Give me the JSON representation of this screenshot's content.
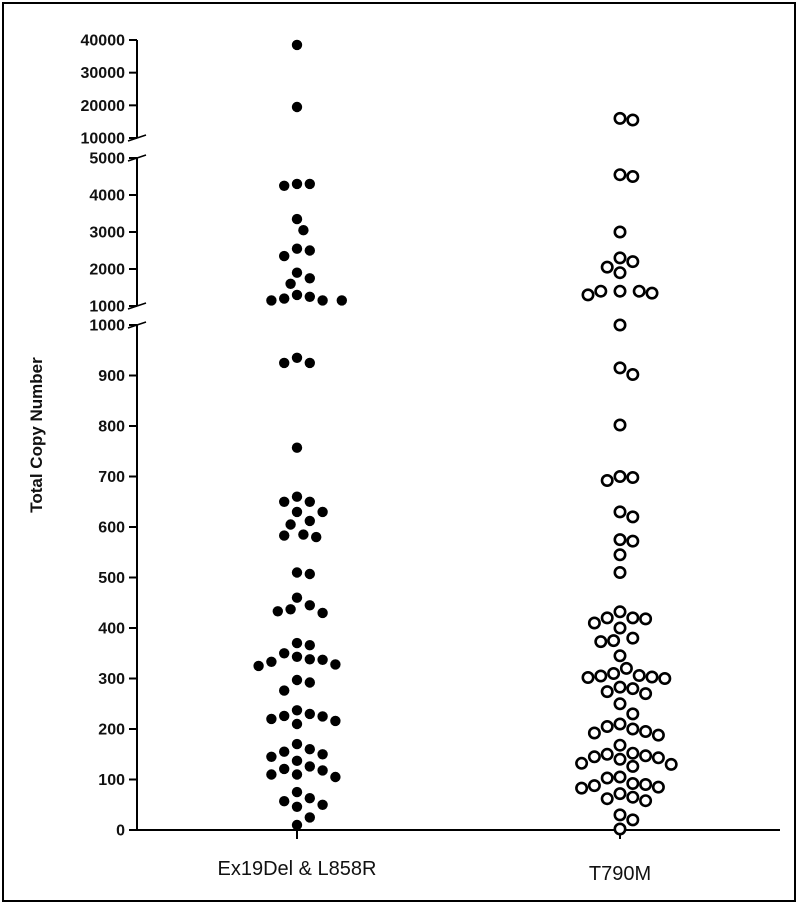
{
  "chart_data": {
    "type": "scatter",
    "title": "",
    "xlabel": "",
    "ylabel": "Total Copy Number",
    "categories": [
      "Ex19Del & L858R",
      "T790M"
    ],
    "axis_segments": [
      {
        "range": [
          0,
          1000
        ],
        "ticks": [
          0,
          100,
          200,
          300,
          400,
          500,
          600,
          700,
          800,
          900,
          1000
        ],
        "tick_labels": [
          "0",
          "100",
          "200",
          "300",
          "400",
          "500",
          "600",
          "700",
          "800",
          "900",
          "1000"
        ]
      },
      {
        "range": [
          1000,
          5000
        ],
        "ticks": [
          1000,
          2000,
          3000,
          4000,
          5000
        ],
        "tick_labels": [
          "1000",
          "2000",
          "3000",
          "4000",
          "5000"
        ]
      },
      {
        "range": [
          10000,
          40000
        ],
        "ticks": [
          10000,
          20000,
          30000,
          40000
        ],
        "tick_labels": [
          "10000",
          "20000",
          "30000",
          "40000"
        ]
      }
    ],
    "series": [
      {
        "name": "Ex19Del & L858R",
        "marker": "filled-circle",
        "values": [
          38500,
          19500,
          4300,
          4250,
          4300,
          3350,
          3050,
          2550,
          2500,
          2350,
          1900,
          1750,
          1600,
          1300,
          1250,
          1200,
          1150,
          1150,
          1150,
          935,
          925,
          925,
          757,
          660,
          650,
          650,
          630,
          630,
          612,
          605,
          583,
          585,
          580,
          510,
          507,
          460,
          445,
          437,
          433,
          430,
          370,
          366,
          350,
          343,
          338,
          337,
          333,
          328,
          325,
          297,
          292,
          276,
          237,
          230,
          226,
          225,
          220,
          216,
          210,
          170,
          160,
          155,
          150,
          145,
          137,
          126,
          121,
          118,
          110,
          110,
          105,
          75,
          63,
          57,
          50,
          46,
          25,
          10
        ]
      },
      {
        "name": "T790M",
        "marker": "open-circle",
        "values": [
          16000,
          15500,
          4550,
          4500,
          3000,
          2300,
          2200,
          2050,
          1900,
          1400,
          1400,
          1400,
          1350,
          1300,
          1000,
          915,
          902,
          802,
          700,
          698,
          692,
          630,
          620,
          575,
          572,
          545,
          510,
          432,
          420,
          420,
          418,
          410,
          400,
          380,
          375,
          373,
          345,
          320,
          310,
          306,
          305,
          303,
          302,
          300,
          283,
          280,
          274,
          270,
          250,
          230,
          210,
          205,
          200,
          195,
          192,
          188,
          168,
          152,
          150,
          147,
          145,
          143,
          140,
          132,
          130,
          126,
          105,
          103,
          92,
          90,
          88,
          85,
          83,
          72,
          65,
          62,
          58,
          30,
          20,
          2
        ]
      }
    ]
  }
}
